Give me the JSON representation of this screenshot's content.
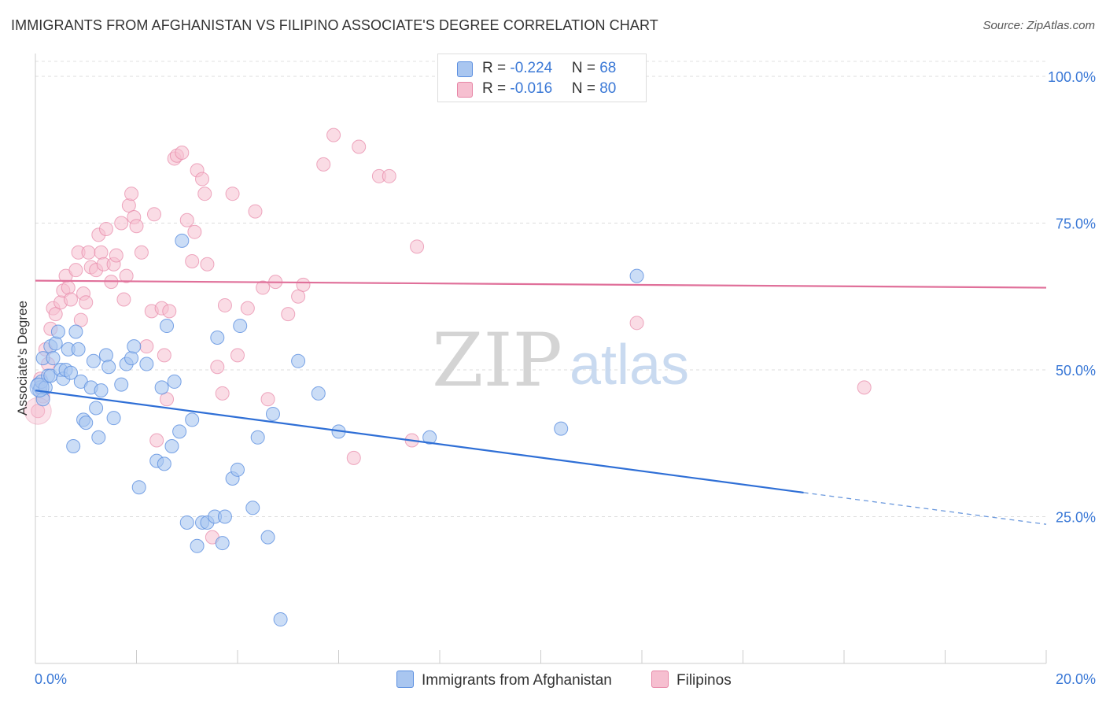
{
  "title": "IMMIGRANTS FROM AFGHANISTAN VS FILIPINO ASSOCIATE'S DEGREE CORRELATION CHART",
  "source": "Source: ZipAtlas.com",
  "watermark": {
    "zip": "ZIP",
    "atlas": "atlas"
  },
  "legend": {
    "r_label": "R = ",
    "n_label": "N = ",
    "series": [
      {
        "r": "-0.224",
        "n": "68"
      },
      {
        "r": "-0.016",
        "n": "80"
      }
    ]
  },
  "chart_data": {
    "type": "scatter",
    "title": "IMMIGRANTS FROM AFGHANISTAN VS FILIPINO ASSOCIATE'S DEGREE CORRELATION CHART",
    "xlabel": "",
    "ylabel": "Associate's Degree",
    "xlim": [
      0,
      20
    ],
    "ylim": [
      0,
      103
    ],
    "x_tick_labels": [
      "0.0%",
      "20.0%"
    ],
    "y_tick_labels": [
      "100.0%",
      "75.0%",
      "50.0%",
      "25.0%"
    ],
    "y_tick_values": [
      100,
      75,
      50,
      25
    ],
    "grid": true,
    "legend_position": "top-center",
    "series": [
      {
        "name": "Immigrants from Afghanistan",
        "color": "#5b8fe0",
        "fill": "#a9c6f0",
        "r": -0.224,
        "n": 68,
        "trend": {
          "x0": 0,
          "y0": 46.5,
          "x1": 15.2,
          "y1": 29.1,
          "x_dash_end": 20,
          "y_dash_end": 23.7
        },
        "points": [
          [
            0.05,
            47.5
          ],
          [
            0.08,
            46.5
          ],
          [
            0.1,
            47
          ],
          [
            0.12,
            48
          ],
          [
            0.15,
            45
          ],
          [
            0.15,
            52
          ],
          [
            0.2,
            47
          ],
          [
            0.25,
            49
          ],
          [
            0.3,
            54
          ],
          [
            0.3,
            49
          ],
          [
            0.35,
            52
          ],
          [
            0.4,
            54.5
          ],
          [
            0.45,
            56.5
          ],
          [
            0.5,
            50
          ],
          [
            0.55,
            48.5
          ],
          [
            0.6,
            50
          ],
          [
            0.65,
            53.5
          ],
          [
            0.7,
            49.5
          ],
          [
            0.75,
            37
          ],
          [
            0.8,
            56.5
          ],
          [
            0.85,
            53.5
          ],
          [
            0.9,
            48
          ],
          [
            0.95,
            41.5
          ],
          [
            1.0,
            41
          ],
          [
            1.1,
            47
          ],
          [
            1.15,
            51.5
          ],
          [
            1.2,
            43.5
          ],
          [
            1.25,
            38.5
          ],
          [
            1.3,
            46.5
          ],
          [
            1.4,
            52.5
          ],
          [
            1.45,
            50.5
          ],
          [
            1.55,
            41.8
          ],
          [
            1.7,
            47.5
          ],
          [
            1.8,
            51
          ],
          [
            1.9,
            52
          ],
          [
            1.95,
            54
          ],
          [
            2.05,
            30
          ],
          [
            2.2,
            51
          ],
          [
            2.4,
            34.5
          ],
          [
            2.5,
            47
          ],
          [
            2.55,
            34
          ],
          [
            2.6,
            57.5
          ],
          [
            2.7,
            37
          ],
          [
            2.75,
            48
          ],
          [
            2.85,
            39.5
          ],
          [
            2.9,
            72
          ],
          [
            3.0,
            24
          ],
          [
            3.1,
            41.5
          ],
          [
            3.2,
            20
          ],
          [
            3.3,
            24
          ],
          [
            3.4,
            24
          ],
          [
            3.55,
            25
          ],
          [
            3.6,
            55.5
          ],
          [
            3.7,
            20.5
          ],
          [
            3.75,
            25
          ],
          [
            3.9,
            31.5
          ],
          [
            4.0,
            33
          ],
          [
            4.05,
            57.5
          ],
          [
            4.3,
            26.5
          ],
          [
            4.4,
            38.5
          ],
          [
            4.6,
            21.5
          ],
          [
            4.7,
            42.5
          ],
          [
            4.85,
            7.5
          ],
          [
            5.2,
            51.5
          ],
          [
            5.6,
            46
          ],
          [
            6.0,
            39.5
          ],
          [
            7.8,
            38.5
          ],
          [
            10.4,
            40
          ],
          [
            11.9,
            66
          ]
        ]
      },
      {
        "name": "Filipinos",
        "color": "#e786a6",
        "fill": "#f6bfd0",
        "r": -0.016,
        "n": 80,
        "trend": {
          "x0": 0,
          "y0": 65.2,
          "x1": 20,
          "y1": 64
        },
        "points": [
          [
            0.05,
            43
          ],
          [
            0.1,
            48.5
          ],
          [
            0.15,
            45.5
          ],
          [
            0.2,
            53.5
          ],
          [
            0.25,
            51
          ],
          [
            0.3,
            57
          ],
          [
            0.35,
            60.5
          ],
          [
            0.4,
            59.5
          ],
          [
            0.5,
            61.5
          ],
          [
            0.55,
            63.5
          ],
          [
            0.6,
            66
          ],
          [
            0.65,
            64
          ],
          [
            0.7,
            62
          ],
          [
            0.8,
            67
          ],
          [
            0.85,
            70
          ],
          [
            0.9,
            58.5
          ],
          [
            0.95,
            63
          ],
          [
            1.0,
            61.5
          ],
          [
            1.05,
            70
          ],
          [
            1.1,
            67.5
          ],
          [
            1.2,
            67
          ],
          [
            1.25,
            73
          ],
          [
            1.3,
            70
          ],
          [
            1.35,
            68
          ],
          [
            1.4,
            74
          ],
          [
            1.5,
            65
          ],
          [
            1.55,
            68
          ],
          [
            1.6,
            69.5
          ],
          [
            1.7,
            75
          ],
          [
            1.75,
            62
          ],
          [
            1.8,
            66
          ],
          [
            1.85,
            78
          ],
          [
            1.9,
            80
          ],
          [
            1.95,
            76
          ],
          [
            2.0,
            74.5
          ],
          [
            2.1,
            70
          ],
          [
            2.2,
            54
          ],
          [
            2.3,
            60
          ],
          [
            2.35,
            76.5
          ],
          [
            2.4,
            38
          ],
          [
            2.5,
            60.5
          ],
          [
            2.55,
            52.5
          ],
          [
            2.6,
            45
          ],
          [
            2.65,
            60
          ],
          [
            2.75,
            86
          ],
          [
            2.8,
            86.5
          ],
          [
            2.9,
            87
          ],
          [
            3.0,
            75.5
          ],
          [
            3.1,
            68.5
          ],
          [
            3.15,
            73.5
          ],
          [
            3.2,
            84
          ],
          [
            3.3,
            82.5
          ],
          [
            3.35,
            80
          ],
          [
            3.4,
            68
          ],
          [
            3.5,
            21.5
          ],
          [
            3.6,
            50.5
          ],
          [
            3.7,
            46
          ],
          [
            3.75,
            61
          ],
          [
            3.9,
            80
          ],
          [
            4.0,
            52.5
          ],
          [
            4.2,
            60.5
          ],
          [
            4.35,
            77
          ],
          [
            4.5,
            64
          ],
          [
            4.6,
            45
          ],
          [
            4.75,
            65
          ],
          [
            5.0,
            59.5
          ],
          [
            5.2,
            62.5
          ],
          [
            5.3,
            64.5
          ],
          [
            5.7,
            85
          ],
          [
            5.9,
            90
          ],
          [
            6.3,
            35
          ],
          [
            6.4,
            88
          ],
          [
            6.8,
            83
          ],
          [
            7.0,
            83
          ],
          [
            7.45,
            38
          ],
          [
            7.55,
            71
          ],
          [
            11.9,
            58
          ],
          [
            16.4,
            47
          ]
        ]
      }
    ]
  },
  "bottom_legend": [
    "Immigrants from Afghanistan",
    "Filipinos"
  ]
}
